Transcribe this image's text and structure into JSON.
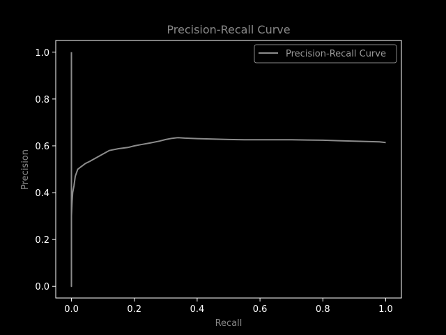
{
  "chart_data": {
    "type": "line",
    "title": "Precision-Recall Curve",
    "xlabel": "Recall",
    "ylabel": "Precision",
    "xlim": [
      -0.05,
      1.05
    ],
    "ylim": [
      -0.05,
      1.05
    ],
    "xticks": [
      "0.0",
      "0.2",
      "0.4",
      "0.6",
      "0.8",
      "1.0"
    ],
    "yticks": [
      "0.0",
      "0.2",
      "0.4",
      "0.6",
      "0.8",
      "1.0"
    ],
    "grid": false,
    "legend_position": "top-right",
    "colors": {
      "background": "#000000",
      "line": "#8c8c8c",
      "axes": "#ffffff"
    },
    "series": [
      {
        "name": "Precision-Recall Curve",
        "x": [
          0.0,
          0.0,
          0.0,
          0.0,
          0.002,
          0.004,
          0.008,
          0.012,
          0.02,
          0.03,
          0.045,
          0.06,
          0.08,
          0.1,
          0.12,
          0.15,
          0.18,
          0.2,
          0.22,
          0.25,
          0.28,
          0.3,
          0.32,
          0.34,
          0.36,
          0.4,
          0.45,
          0.5,
          0.55,
          0.6,
          0.65,
          0.7,
          0.75,
          0.8,
          0.85,
          0.9,
          0.95,
          0.98,
          1.0
        ],
        "y": [
          1.0,
          0.0,
          0.1,
          0.3,
          0.36,
          0.4,
          0.43,
          0.47,
          0.5,
          0.51,
          0.525,
          0.535,
          0.55,
          0.565,
          0.58,
          0.588,
          0.593,
          0.6,
          0.605,
          0.612,
          0.62,
          0.627,
          0.632,
          0.635,
          0.633,
          0.631,
          0.629,
          0.627,
          0.626,
          0.626,
          0.626,
          0.626,
          0.625,
          0.624,
          0.622,
          0.62,
          0.618,
          0.617,
          0.614
        ]
      }
    ]
  }
}
